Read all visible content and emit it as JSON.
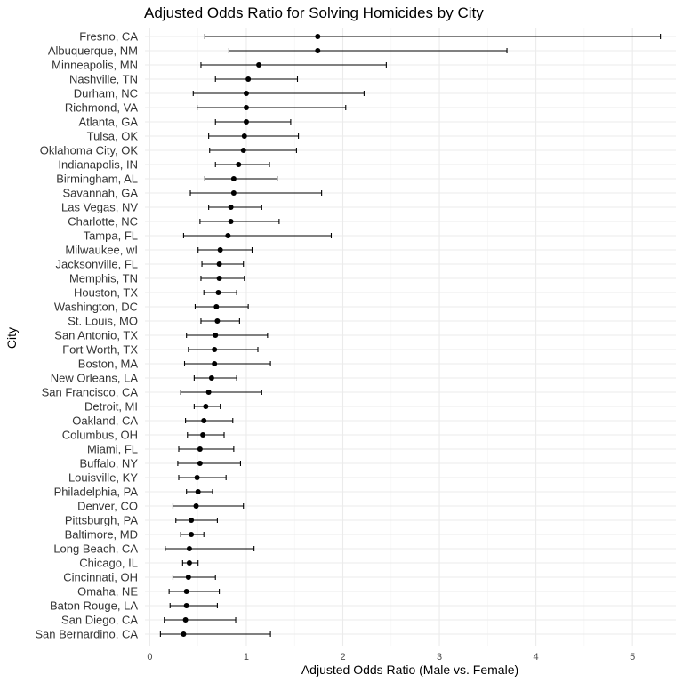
{
  "chart_data": {
    "type": "scatter",
    "title": "Adjusted Odds Ratio for Solving Homicides by City",
    "xlabel": "Adjusted Odds Ratio (Male vs. Female)",
    "ylabel": "City",
    "xlim": [
      -0.05,
      5.45
    ],
    "xticks": [
      0,
      1,
      2,
      3,
      4,
      5
    ],
    "grid": true,
    "legend": "none",
    "point_color": "#000000",
    "error_bar_color": "#000000",
    "rows": [
      {
        "city": "Fresno, CA",
        "estimate": 1.74,
        "low": 0.57,
        "high": 5.29
      },
      {
        "city": "Albuquerque, NM",
        "estimate": 1.74,
        "low": 0.82,
        "high": 3.7
      },
      {
        "city": "Minneapolis, MN",
        "estimate": 1.13,
        "low": 0.53,
        "high": 2.45
      },
      {
        "city": "Nashville, TN",
        "estimate": 1.02,
        "low": 0.68,
        "high": 1.53
      },
      {
        "city": "Durham, NC",
        "estimate": 1.0,
        "low": 0.45,
        "high": 2.22
      },
      {
        "city": "Richmond, VA",
        "estimate": 1.0,
        "low": 0.49,
        "high": 2.03
      },
      {
        "city": "Atlanta, GA",
        "estimate": 1.0,
        "low": 0.68,
        "high": 1.46
      },
      {
        "city": "Tulsa, OK",
        "estimate": 0.98,
        "low": 0.61,
        "high": 1.54
      },
      {
        "city": "Oklahoma City, OK",
        "estimate": 0.97,
        "low": 0.62,
        "high": 1.52
      },
      {
        "city": "Indianapolis, IN",
        "estimate": 0.92,
        "low": 0.68,
        "high": 1.24
      },
      {
        "city": "Birmingham, AL",
        "estimate": 0.87,
        "low": 0.57,
        "high": 1.32
      },
      {
        "city": "Savannah, GA",
        "estimate": 0.87,
        "low": 0.42,
        "high": 1.78
      },
      {
        "city": "Las Vegas, NV",
        "estimate": 0.84,
        "low": 0.61,
        "high": 1.16
      },
      {
        "city": "Charlotte, NC",
        "estimate": 0.84,
        "low": 0.52,
        "high": 1.34
      },
      {
        "city": "Tampa, FL",
        "estimate": 0.81,
        "low": 0.35,
        "high": 1.88
      },
      {
        "city": "Milwaukee, wI",
        "estimate": 0.73,
        "low": 0.5,
        "high": 1.06
      },
      {
        "city": "Jacksonville, FL",
        "estimate": 0.72,
        "low": 0.54,
        "high": 0.97
      },
      {
        "city": "Memphis, TN",
        "estimate": 0.72,
        "low": 0.53,
        "high": 0.98
      },
      {
        "city": "Houston, TX",
        "estimate": 0.71,
        "low": 0.56,
        "high": 0.9
      },
      {
        "city": "Washington, DC",
        "estimate": 0.69,
        "low": 0.47,
        "high": 1.02
      },
      {
        "city": "St. Louis, MO",
        "estimate": 0.7,
        "low": 0.53,
        "high": 0.93
      },
      {
        "city": "San Antonio, TX",
        "estimate": 0.68,
        "low": 0.38,
        "high": 1.22
      },
      {
        "city": "Fort Worth, TX",
        "estimate": 0.67,
        "low": 0.4,
        "high": 1.12
      },
      {
        "city": "Boston, MA",
        "estimate": 0.67,
        "low": 0.36,
        "high": 1.25
      },
      {
        "city": "New Orleans, LA",
        "estimate": 0.64,
        "low": 0.46,
        "high": 0.9
      },
      {
        "city": "San Francisco, CA",
        "estimate": 0.61,
        "low": 0.32,
        "high": 1.16
      },
      {
        "city": "Detroit, MI",
        "estimate": 0.58,
        "low": 0.46,
        "high": 0.73
      },
      {
        "city": "Oakland, CA",
        "estimate": 0.56,
        "low": 0.37,
        "high": 0.86
      },
      {
        "city": "Columbus, OH",
        "estimate": 0.55,
        "low": 0.39,
        "high": 0.77
      },
      {
        "city": "Miami, FL",
        "estimate": 0.52,
        "low": 0.3,
        "high": 0.87
      },
      {
        "city": "Buffalo, NY",
        "estimate": 0.52,
        "low": 0.29,
        "high": 0.94
      },
      {
        "city": "Louisville, KY",
        "estimate": 0.49,
        "low": 0.3,
        "high": 0.79
      },
      {
        "city": "Philadelphia, PA",
        "estimate": 0.5,
        "low": 0.38,
        "high": 0.65
      },
      {
        "city": "Denver, CO",
        "estimate": 0.48,
        "low": 0.24,
        "high": 0.97
      },
      {
        "city": "Pittsburgh, PA",
        "estimate": 0.43,
        "low": 0.27,
        "high": 0.7
      },
      {
        "city": "Baltimore, MD",
        "estimate": 0.43,
        "low": 0.32,
        "high": 0.56
      },
      {
        "city": "Long Beach, CA",
        "estimate": 0.41,
        "low": 0.16,
        "high": 1.08
      },
      {
        "city": "Chicago, IL",
        "estimate": 0.41,
        "low": 0.34,
        "high": 0.5
      },
      {
        "city": "Cincinnati, OH",
        "estimate": 0.4,
        "low": 0.24,
        "high": 0.68
      },
      {
        "city": "Omaha, NE",
        "estimate": 0.38,
        "low": 0.2,
        "high": 0.72
      },
      {
        "city": "Baton Rouge, LA",
        "estimate": 0.38,
        "low": 0.21,
        "high": 0.7
      },
      {
        "city": "San Diego, CA",
        "estimate": 0.37,
        "low": 0.15,
        "high": 0.89
      },
      {
        "city": "San Bernardino, CA",
        "estimate": 0.35,
        "low": 0.11,
        "high": 1.25
      }
    ]
  }
}
